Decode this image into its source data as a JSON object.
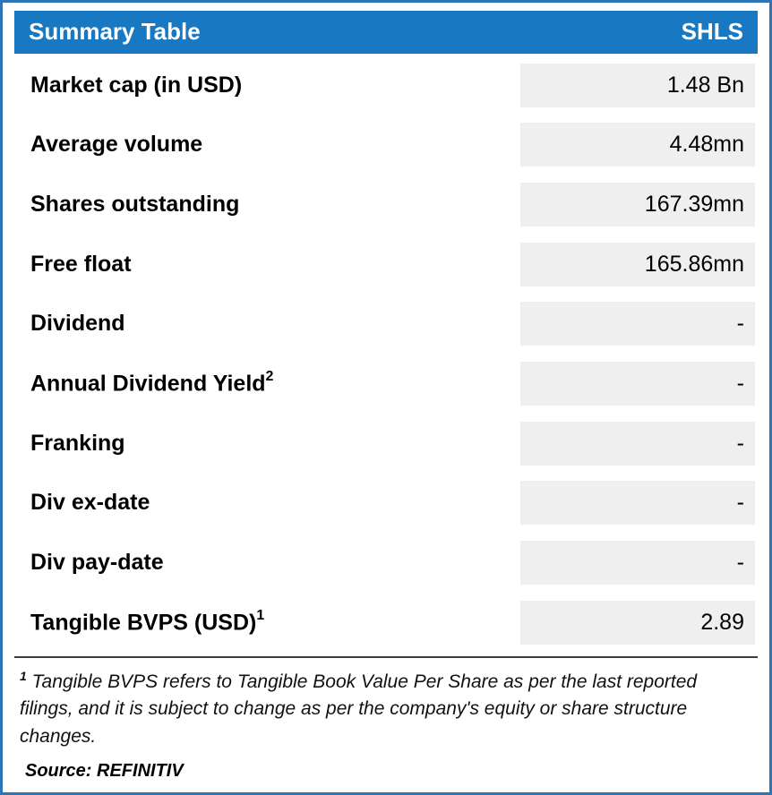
{
  "header": {
    "title": "Summary Table",
    "ticker": "SHLS"
  },
  "rows": [
    {
      "label": "Market cap (in USD)",
      "sup": "",
      "value": "1.48 Bn"
    },
    {
      "label": "Average volume",
      "sup": "",
      "value": "4.48mn"
    },
    {
      "label": "Shares outstanding",
      "sup": "",
      "value": "167.39mn"
    },
    {
      "label": "Free float",
      "sup": "",
      "value": "165.86mn"
    },
    {
      "label": "Dividend",
      "sup": "",
      "value": "-"
    },
    {
      "label": "Annual Dividend Yield",
      "sup": "2",
      "value": "-"
    },
    {
      "label": "Franking",
      "sup": "",
      "value": "-"
    },
    {
      "label": "Div ex-date",
      "sup": "",
      "value": "-"
    },
    {
      "label": "Div pay-date",
      "sup": "",
      "value": "-"
    },
    {
      "label": "Tangible BVPS (USD)",
      "sup": "1",
      "value": "2.89"
    }
  ],
  "footnote": {
    "sup": "1",
    "text": " Tangible BVPS refers to Tangible Book Value Per Share as per the last reported filings, and it is subject to change as per the company's equity or share structure changes."
  },
  "source": "Source: REFINITIV",
  "colors": {
    "header_bg": "#1878C2",
    "border": "#2E75B6",
    "cell_bg": "#EFEFEF"
  }
}
